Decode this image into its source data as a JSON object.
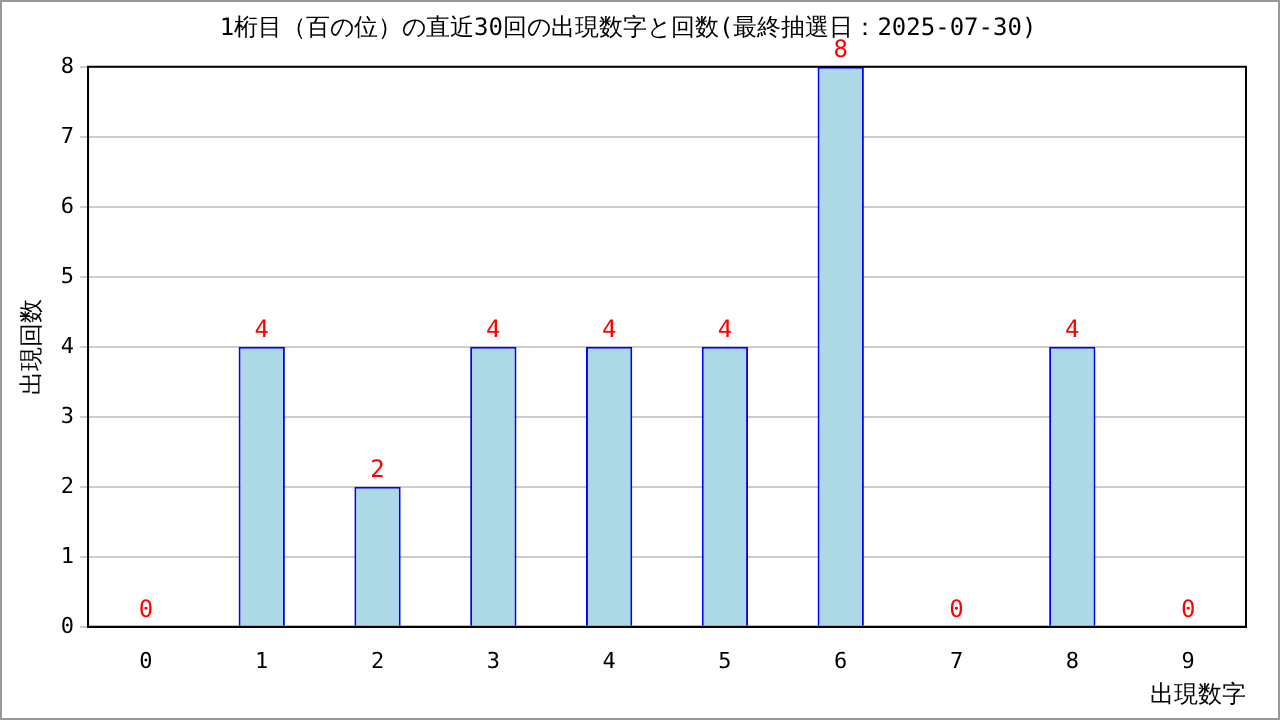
{
  "chart_data": {
    "type": "bar",
    "title": "1桁目（百の位）の直近30回の出現数字と回数(最終抽選日：2025-07-30)",
    "xlabel": "出現数字",
    "ylabel": "出現回数",
    "categories": [
      "0",
      "1",
      "2",
      "3",
      "4",
      "5",
      "6",
      "7",
      "8",
      "9"
    ],
    "values": [
      0,
      4,
      2,
      4,
      4,
      4,
      8,
      0,
      4,
      0
    ],
    "color": "#add8e6",
    "ylim": [
      0,
      8
    ],
    "yticks": [
      0,
      1,
      2,
      3,
      4,
      5,
      6,
      7,
      8
    ],
    "grid": "y",
    "data_labels": true,
    "legend": false
  }
}
